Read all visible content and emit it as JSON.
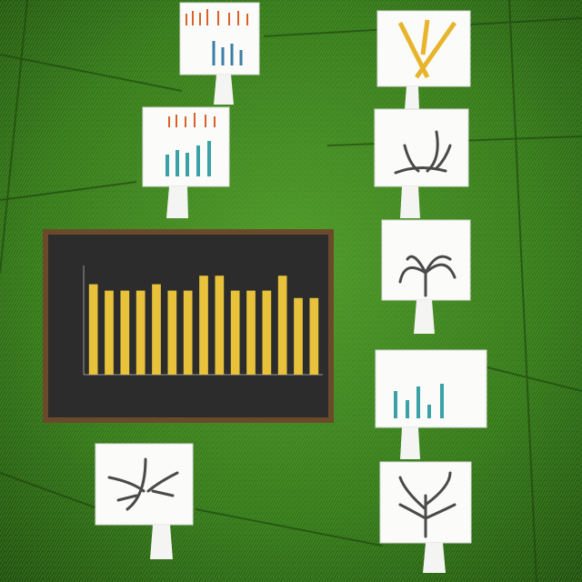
{
  "chart_data": {
    "type": "bar",
    "values": [
      85,
      79,
      79,
      79,
      85,
      79,
      79,
      93,
      93,
      79,
      79,
      79,
      93,
      72,
      72
    ],
    "color": "#e8c23a",
    "ylim": [
      0,
      100
    ]
  }
}
